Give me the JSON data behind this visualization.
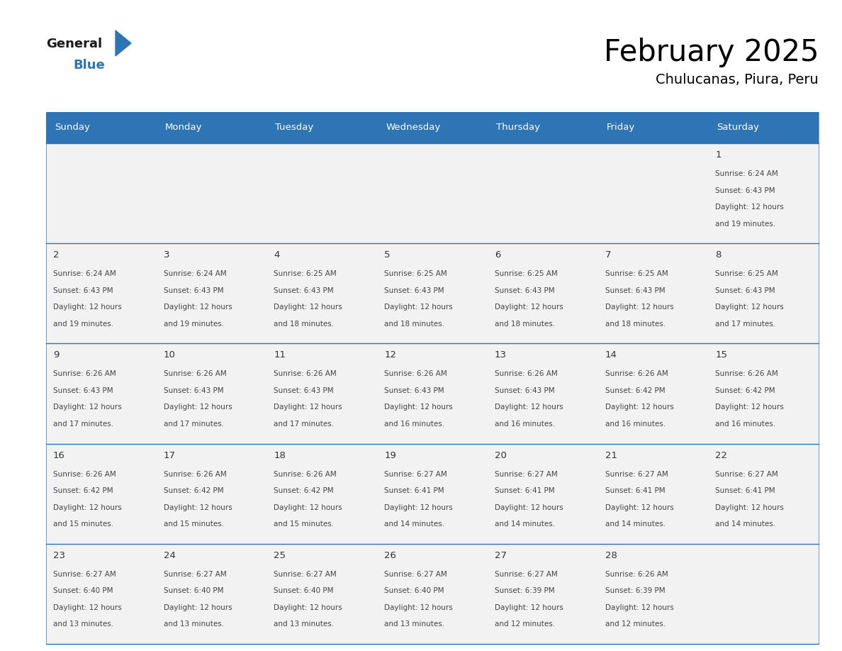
{
  "title": "February 2025",
  "subtitle": "Chulucanas, Piura, Peru",
  "header_bg": "#2E75B6",
  "header_text_color": "#FFFFFF",
  "day_names": [
    "Sunday",
    "Monday",
    "Tuesday",
    "Wednesday",
    "Thursday",
    "Friday",
    "Saturday"
  ],
  "cell_bg": "#F2F2F2",
  "cell_border_color": "#2E75B6",
  "date_color": "#333333",
  "info_color": "#444444",
  "calendar": [
    [
      null,
      null,
      null,
      null,
      null,
      null,
      1
    ],
    [
      2,
      3,
      4,
      5,
      6,
      7,
      8
    ],
    [
      9,
      10,
      11,
      12,
      13,
      14,
      15
    ],
    [
      16,
      17,
      18,
      19,
      20,
      21,
      22
    ],
    [
      23,
      24,
      25,
      26,
      27,
      28,
      null
    ]
  ],
  "sunrise": {
    "1": "6:24 AM",
    "2": "6:24 AM",
    "3": "6:24 AM",
    "4": "6:25 AM",
    "5": "6:25 AM",
    "6": "6:25 AM",
    "7": "6:25 AM",
    "8": "6:25 AM",
    "9": "6:26 AM",
    "10": "6:26 AM",
    "11": "6:26 AM",
    "12": "6:26 AM",
    "13": "6:26 AM",
    "14": "6:26 AM",
    "15": "6:26 AM",
    "16": "6:26 AM",
    "17": "6:26 AM",
    "18": "6:26 AM",
    "19": "6:27 AM",
    "20": "6:27 AM",
    "21": "6:27 AM",
    "22": "6:27 AM",
    "23": "6:27 AM",
    "24": "6:27 AM",
    "25": "6:27 AM",
    "26": "6:27 AM",
    "27": "6:27 AM",
    "28": "6:26 AM"
  },
  "sunset": {
    "1": "6:43 PM",
    "2": "6:43 PM",
    "3": "6:43 PM",
    "4": "6:43 PM",
    "5": "6:43 PM",
    "6": "6:43 PM",
    "7": "6:43 PM",
    "8": "6:43 PM",
    "9": "6:43 PM",
    "10": "6:43 PM",
    "11": "6:43 PM",
    "12": "6:43 PM",
    "13": "6:43 PM",
    "14": "6:42 PM",
    "15": "6:42 PM",
    "16": "6:42 PM",
    "17": "6:42 PM",
    "18": "6:42 PM",
    "19": "6:41 PM",
    "20": "6:41 PM",
    "21": "6:41 PM",
    "22": "6:41 PM",
    "23": "6:40 PM",
    "24": "6:40 PM",
    "25": "6:40 PM",
    "26": "6:40 PM",
    "27": "6:39 PM",
    "28": "6:39 PM"
  },
  "daylight": {
    "1": [
      "12 hours",
      "and 19 minutes."
    ],
    "2": [
      "12 hours",
      "and 19 minutes."
    ],
    "3": [
      "12 hours",
      "and 19 minutes."
    ],
    "4": [
      "12 hours",
      "and 18 minutes."
    ],
    "5": [
      "12 hours",
      "and 18 minutes."
    ],
    "6": [
      "12 hours",
      "and 18 minutes."
    ],
    "7": [
      "12 hours",
      "and 18 minutes."
    ],
    "8": [
      "12 hours",
      "and 17 minutes."
    ],
    "9": [
      "12 hours",
      "and 17 minutes."
    ],
    "10": [
      "12 hours",
      "and 17 minutes."
    ],
    "11": [
      "12 hours",
      "and 17 minutes."
    ],
    "12": [
      "12 hours",
      "and 16 minutes."
    ],
    "13": [
      "12 hours",
      "and 16 minutes."
    ],
    "14": [
      "12 hours",
      "and 16 minutes."
    ],
    "15": [
      "12 hours",
      "and 16 minutes."
    ],
    "16": [
      "12 hours",
      "and 15 minutes."
    ],
    "17": [
      "12 hours",
      "and 15 minutes."
    ],
    "18": [
      "12 hours",
      "and 15 minutes."
    ],
    "19": [
      "12 hours",
      "and 14 minutes."
    ],
    "20": [
      "12 hours",
      "and 14 minutes."
    ],
    "21": [
      "12 hours",
      "and 14 minutes."
    ],
    "22": [
      "12 hours",
      "and 14 minutes."
    ],
    "23": [
      "12 hours",
      "and 13 minutes."
    ],
    "24": [
      "12 hours",
      "and 13 minutes."
    ],
    "25": [
      "12 hours",
      "and 13 minutes."
    ],
    "26": [
      "12 hours",
      "and 13 minutes."
    ],
    "27": [
      "12 hours",
      "and 12 minutes."
    ],
    "28": [
      "12 hours",
      "and 12 minutes."
    ]
  }
}
